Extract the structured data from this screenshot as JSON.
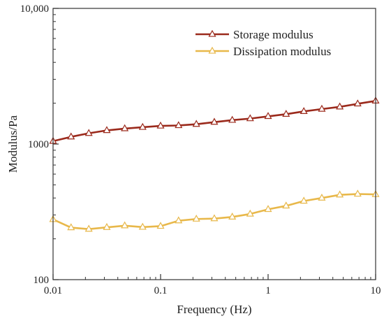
{
  "chart_data": {
    "type": "line",
    "xlabel": "Frequency (Hz)",
    "ylabel": "Modulus/Pa",
    "x_scale": "log",
    "y_scale": "log",
    "xlim": [
      0.01,
      10
    ],
    "ylim": [
      100,
      10000
    ],
    "x_ticks": [
      {
        "value": 0.01,
        "label": "0.01"
      },
      {
        "value": 0.1,
        "label": "0.1"
      },
      {
        "value": 1,
        "label": "1"
      },
      {
        "value": 10,
        "label": "10"
      }
    ],
    "y_ticks": [
      {
        "value": 100,
        "label": "100"
      },
      {
        "value": 1000,
        "label": "1000"
      },
      {
        "value": 10000,
        "label": "10,000"
      }
    ],
    "grid": false,
    "legend_position": "top-right",
    "series": [
      {
        "name": "Storage modulus",
        "color": "#9b2a1c",
        "marker": "triangle",
        "x": [
          0.01,
          0.0147,
          0.0215,
          0.0316,
          0.0464,
          0.0681,
          0.1,
          0.147,
          0.215,
          0.316,
          0.464,
          0.681,
          1,
          1.47,
          2.15,
          3.16,
          4.64,
          6.81,
          10
        ],
        "y": [
          1050,
          1130,
          1200,
          1260,
          1300,
          1330,
          1360,
          1370,
          1400,
          1450,
          1500,
          1540,
          1600,
          1660,
          1740,
          1810,
          1880,
          1980,
          2080
        ]
      },
      {
        "name": "Dissipation modulus",
        "color": "#e8b84a",
        "marker": "triangle",
        "x": [
          0.01,
          0.0147,
          0.0215,
          0.0316,
          0.0464,
          0.0681,
          0.1,
          0.147,
          0.215,
          0.316,
          0.464,
          0.681,
          1,
          1.47,
          2.15,
          3.16,
          4.64,
          6.81,
          10
        ],
        "y": [
          278,
          242,
          236,
          243,
          250,
          244,
          248,
          272,
          280,
          282,
          290,
          305,
          330,
          350,
          380,
          400,
          422,
          428,
          425
        ]
      }
    ]
  }
}
